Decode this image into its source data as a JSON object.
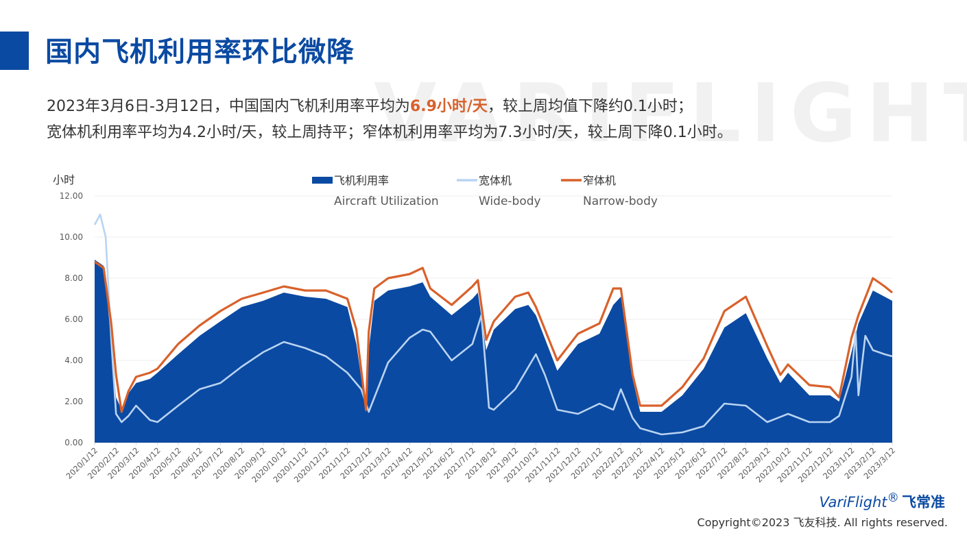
{
  "header": {
    "title": "国内飞机利用率环比微降",
    "watermark": "VARIFLIGHT"
  },
  "summary": {
    "line1_a": "2023年3月6日-3月12日，中国国内飞机利用率平均为",
    "line1_highlight": "6.9小时/天",
    "line1_b": "，较上周均值下降约0.1小时；",
    "line2": "宽体机利用率平均为4.2小时/天，较上周持平；窄体机利用率平均为7.3小时/天，较上周下降0.1小时。"
  },
  "chart_data": {
    "type": "area",
    "title": "",
    "ylabel": "小时",
    "xlabel": "",
    "ylim": [
      0,
      12
    ],
    "yticks": [
      "0.00",
      "2.00",
      "4.00",
      "6.00",
      "8.00",
      "10.00",
      "12.00"
    ],
    "x_ticks": [
      "2020/1/12",
      "2020/2/12",
      "2020/3/12",
      "2020/4/12",
      "2020/5/12",
      "2020/6/12",
      "2020/7/12",
      "2020/8/12",
      "2020/9/12",
      "2020/10/12",
      "2020/11/12",
      "2020/12/12",
      "2021/1/12",
      "2021/2/12",
      "2021/3/12",
      "2021/4/12",
      "2021/5/12",
      "2021/6/12",
      "2021/7/12",
      "2021/8/12",
      "2021/9/12",
      "2021/10/12",
      "2021/11/12",
      "2021/12/12",
      "2022/1/12",
      "2022/2/12",
      "2022/3/12",
      "2022/4/12",
      "2022/5/12",
      "2022/6/12",
      "2022/7/12",
      "2022/8/12",
      "2022/9/12",
      "2022/10/12",
      "2022/11/12",
      "2022/12/12",
      "2023/1/12",
      "2023/2/12",
      "2023/3/12"
    ],
    "grid": true,
    "legend_position": "top",
    "series": [
      {
        "name": "飞机利用率",
        "name_en": "Aircraft Utilization",
        "style": "area",
        "color": "#0b4aa2",
        "x": [
          "2020/1/12",
          "2020/1/25",
          "2020/2/5",
          "2020/2/12",
          "2020/2/20",
          "2020/3/1",
          "2020/3/12",
          "2020/4/1",
          "2020/4/12",
          "2020/5/12",
          "2020/6/12",
          "2020/7/12",
          "2020/8/12",
          "2020/9/12",
          "2020/10/12",
          "2020/11/12",
          "2020/12/12",
          "2021/1/12",
          "2021/1/25",
          "2021/2/8",
          "2021/2/12",
          "2021/2/20",
          "2021/3/12",
          "2021/4/12",
          "2021/5/1",
          "2021/5/12",
          "2021/6/12",
          "2021/7/12",
          "2021/7/20",
          "2021/8/1",
          "2021/8/12",
          "2021/9/12",
          "2021/10/1",
          "2021/10/12",
          "2021/11/12",
          "2021/12/12",
          "2022/1/12",
          "2022/2/1",
          "2022/2/12",
          "2022/3/1",
          "2022/3/12",
          "2022/4/12",
          "2022/5/12",
          "2022/6/12",
          "2022/7/12",
          "2022/8/12",
          "2022/9/12",
          "2022/10/1",
          "2022/10/12",
          "2022/11/12",
          "2022/12/12",
          "2022/12/25",
          "2023/1/12",
          "2023/1/22",
          "2023/2/12",
          "2023/3/1",
          "2023/3/12"
        ],
        "values": [
          8.9,
          8.6,
          5.0,
          2.2,
          1.6,
          2.4,
          2.9,
          3.1,
          3.4,
          4.3,
          5.2,
          5.9,
          6.6,
          6.9,
          7.3,
          7.1,
          7.0,
          6.6,
          4.8,
          1.5,
          4.5,
          6.9,
          7.4,
          7.6,
          7.8,
          7.1,
          6.2,
          7.0,
          7.3,
          4.5,
          5.5,
          6.5,
          6.7,
          6.2,
          3.5,
          4.8,
          5.3,
          6.7,
          7.1,
          3.1,
          1.5,
          1.5,
          2.3,
          3.6,
          5.6,
          6.3,
          4.1,
          2.9,
          3.4,
          2.3,
          2.3,
          2.0,
          4.4,
          5.8,
          7.4,
          7.1,
          6.9
        ]
      },
      {
        "name": "宽体机",
        "name_en": "Wide-body",
        "style": "line",
        "color": "#b9d4f2",
        "x": [
          "2020/1/12",
          "2020/1/20",
          "2020/1/28",
          "2020/2/5",
          "2020/2/12",
          "2020/2/20",
          "2020/3/1",
          "2020/3/12",
          "2020/4/1",
          "2020/4/12",
          "2020/5/12",
          "2020/6/12",
          "2020/7/12",
          "2020/8/12",
          "2020/9/12",
          "2020/10/12",
          "2020/11/12",
          "2020/12/12",
          "2021/1/12",
          "2021/2/1",
          "2021/2/12",
          "2021/3/12",
          "2021/4/12",
          "2021/5/1",
          "2021/5/12",
          "2021/6/12",
          "2021/7/12",
          "2021/7/25",
          "2021/8/5",
          "2021/8/12",
          "2021/9/12",
          "2021/10/12",
          "2021/10/25",
          "2021/11/12",
          "2021/12/12",
          "2022/1/12",
          "2022/2/1",
          "2022/2/12",
          "2022/3/1",
          "2022/3/12",
          "2022/4/12",
          "2022/5/12",
          "2022/6/12",
          "2022/7/12",
          "2022/8/12",
          "2022/9/12",
          "2022/10/12",
          "2022/11/12",
          "2022/12/12",
          "2022/12/25",
          "2023/1/12",
          "2023/1/18",
          "2023/1/22",
          "2023/2/1",
          "2023/2/12",
          "2023/3/1",
          "2023/3/12"
        ],
        "values": [
          10.6,
          11.1,
          10.0,
          5.0,
          1.4,
          1.0,
          1.3,
          1.8,
          1.1,
          1.0,
          1.8,
          2.6,
          2.9,
          3.7,
          4.4,
          4.9,
          4.6,
          4.2,
          3.4,
          2.6,
          1.5,
          3.9,
          5.1,
          5.5,
          5.4,
          4.0,
          4.8,
          6.2,
          1.7,
          1.6,
          2.6,
          4.3,
          3.3,
          1.6,
          1.4,
          1.9,
          1.6,
          2.6,
          1.2,
          0.7,
          0.4,
          0.5,
          0.8,
          1.9,
          1.8,
          1.0,
          1.4,
          1.0,
          1.0,
          1.3,
          3.2,
          5.4,
          2.3,
          5.2,
          4.5,
          4.3,
          4.2
        ]
      },
      {
        "name": "窄体机",
        "name_en": "Narrow-body",
        "style": "line",
        "color": "#d8612b",
        "x": [
          "2020/1/12",
          "2020/1/25",
          "2020/2/5",
          "2020/2/12",
          "2020/2/20",
          "2020/3/1",
          "2020/3/12",
          "2020/4/1",
          "2020/4/12",
          "2020/5/12",
          "2020/6/12",
          "2020/7/12",
          "2020/8/12",
          "2020/9/12",
          "2020/10/12",
          "2020/11/12",
          "2020/12/12",
          "2021/1/12",
          "2021/1/25",
          "2021/2/8",
          "2021/2/12",
          "2021/2/20",
          "2021/3/12",
          "2021/4/12",
          "2021/5/1",
          "2021/5/12",
          "2021/6/12",
          "2021/7/12",
          "2021/7/20",
          "2021/8/1",
          "2021/8/12",
          "2021/9/12",
          "2021/10/1",
          "2021/10/12",
          "2021/11/12",
          "2021/12/12",
          "2022/1/12",
          "2022/2/1",
          "2022/2/12",
          "2022/3/1",
          "2022/3/12",
          "2022/4/12",
          "2022/5/12",
          "2022/6/12",
          "2022/7/12",
          "2022/8/12",
          "2022/9/12",
          "2022/10/1",
          "2022/10/12",
          "2022/11/12",
          "2022/12/12",
          "2022/12/25",
          "2023/1/12",
          "2023/1/22",
          "2023/2/12",
          "2023/3/1",
          "2023/3/12"
        ],
        "values": [
          8.8,
          8.5,
          5.8,
          3.3,
          1.5,
          2.5,
          3.2,
          3.4,
          3.6,
          4.8,
          5.7,
          6.4,
          7.0,
          7.3,
          7.6,
          7.4,
          7.4,
          7.0,
          5.5,
          1.6,
          5.4,
          7.5,
          8.0,
          8.2,
          8.5,
          7.5,
          6.7,
          7.6,
          7.9,
          5.0,
          5.9,
          7.1,
          7.3,
          6.6,
          4.0,
          5.3,
          5.8,
          7.5,
          7.5,
          3.3,
          1.8,
          1.8,
          2.7,
          4.1,
          6.4,
          7.1,
          4.7,
          3.3,
          3.8,
          2.8,
          2.7,
          2.2,
          5.1,
          6.2,
          8.0,
          7.6,
          7.3
        ]
      }
    ]
  },
  "footer": {
    "logo_text": "VariFlight",
    "logo_mark": "®",
    "logo_cn": "飞常准",
    "copyright": "Copyright©2023 飞友科技. All rights reserved."
  }
}
